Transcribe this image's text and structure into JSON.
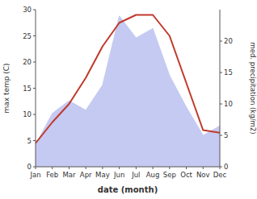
{
  "chart_data": {
    "type": "line",
    "xlabel": "date (month)",
    "ylabel": "max temp (C)",
    "y2label": "med. precipitation (kg/m2)",
    "categories": [
      "Jan",
      "Feb",
      "Mar",
      "Apr",
      "May",
      "Jun",
      "Jul",
      "Aug",
      "Sep",
      "Oct",
      "Nov",
      "Dec"
    ],
    "series": [
      {
        "type": "area",
        "axis": "y2",
        "color": "#c5caf2",
        "values": [
          3.5,
          8.5,
          10.5,
          9.0,
          13.0,
          24.0,
          20.5,
          22.0,
          14.5,
          9.5,
          5.0,
          6.5
        ]
      },
      {
        "type": "line",
        "color": "#c0392b",
        "values": [
          4.5,
          8.5,
          12.0,
          17.0,
          23.0,
          27.5,
          29.0,
          29.0,
          25.0,
          16.0,
          7.0,
          6.5
        ]
      }
    ],
    "ylim": [
      0,
      30
    ],
    "yticks": [
      0,
      5,
      10,
      15,
      20,
      25,
      30
    ],
    "y2lim": [
      0,
      25
    ],
    "y2ticks": [
      0,
      5,
      10,
      15,
      20
    ],
    "grid": false
  }
}
